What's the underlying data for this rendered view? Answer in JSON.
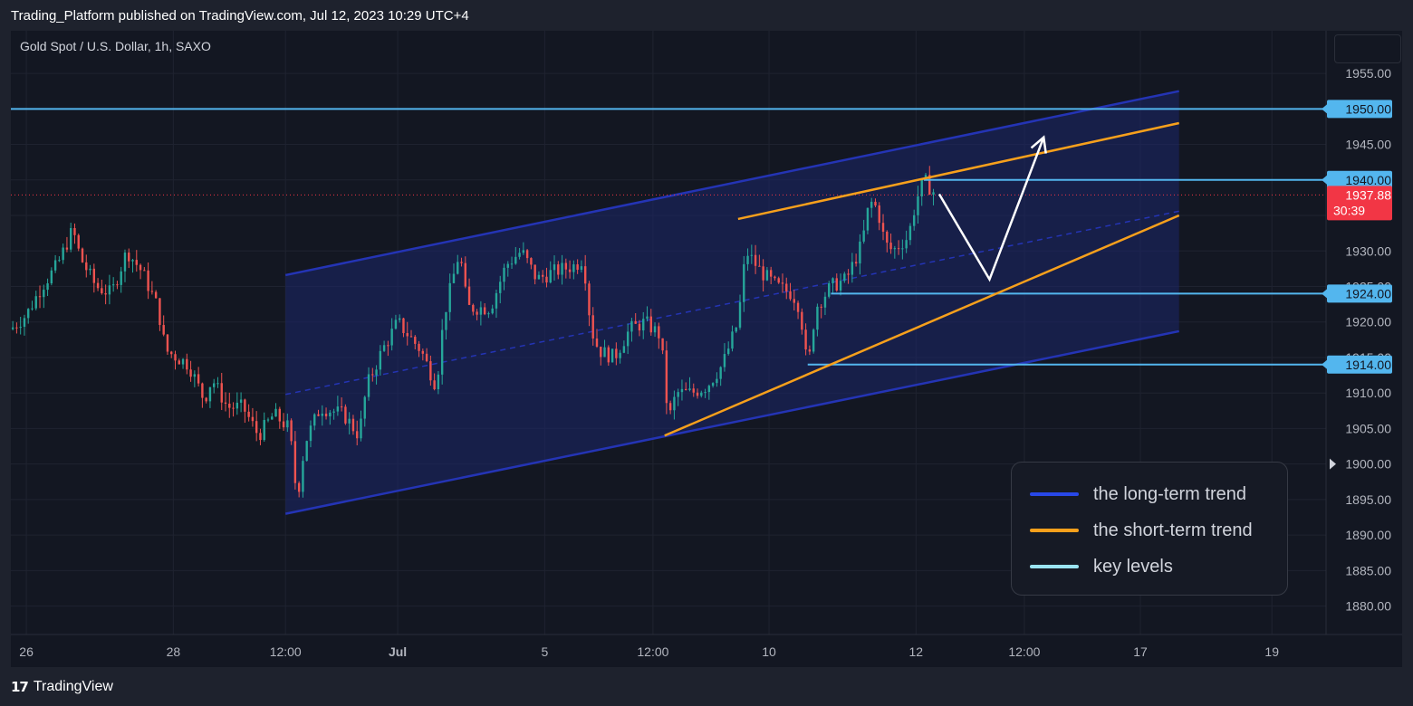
{
  "header": {
    "published": "Trading_Platform published on TradingView.com, Jul 12, 2023 10:29 UTC+4"
  },
  "symbol": {
    "title": "Gold Spot / U.S. Dollar, 1h, SAXO"
  },
  "footer": {
    "brand": "TradingView",
    "logo_glyph": "17"
  },
  "legend": {
    "items": [
      {
        "label": "the long-term trend",
        "color": "#2848e8"
      },
      {
        "label": "the short-term trend",
        "color": "#f7a01c"
      },
      {
        "label": "key levels",
        "color": "#9ae4f2"
      }
    ]
  },
  "colors": {
    "background": "#131722",
    "grid": "#1f2330",
    "up_candle": "#26a69a",
    "down_candle": "#ef5350",
    "key_level": "#53b6ee",
    "channel_fill": "#1c2669",
    "channel_line": "#2434b5",
    "short_trend": "#f7a01c",
    "projection": "#ffffff",
    "price_tag": "#f23645"
  },
  "chart_data": {
    "type": "candlestick",
    "title": "Gold Spot / U.S. Dollar, 1h, SAXO",
    "ylim": [
      1876,
      1961
    ],
    "yticks": [
      1955,
      1950,
      1945,
      1940,
      1935,
      1930,
      1925,
      1920,
      1915,
      1910,
      1905,
      1900,
      1895,
      1890,
      1885,
      1880
    ],
    "ytick_labels": [
      "1955.00",
      "1950.00",
      "1945.00",
      "1940.00",
      "1935.00",
      "1930.00",
      "1925.00",
      "1920.00",
      "1915.00",
      "1910.00",
      "1905.00",
      "1900.00",
      "1895.00",
      "1890.00",
      "1885.00",
      "1880.00"
    ],
    "xlim": [
      0,
      170
    ],
    "xticks": [
      {
        "label": "26",
        "t": 2
      },
      {
        "label": "28",
        "t": 21
      },
      {
        "label": "12:00",
        "t": 35.5
      },
      {
        "label": "Jul",
        "t": 50
      },
      {
        "label": "5",
        "t": 69
      },
      {
        "label": "12:00",
        "t": 83
      },
      {
        "label": "10",
        "t": 98
      },
      {
        "label": "12",
        "t": 117
      },
      {
        "label": "12:00",
        "t": 131
      },
      {
        "label": "17",
        "t": 146
      },
      {
        "label": "19",
        "t": 163
      }
    ],
    "price_anchors": [
      [
        0,
        1919
      ],
      [
        2,
        1921
      ],
      [
        4,
        1925
      ],
      [
        6,
        1928
      ],
      [
        8,
        1933
      ],
      [
        9,
        1929
      ],
      [
        11,
        1925
      ],
      [
        13,
        1924
      ],
      [
        15,
        1930
      ],
      [
        17,
        1927
      ],
      [
        19,
        1922
      ],
      [
        20,
        1916
      ],
      [
        23,
        1914
      ],
      [
        25,
        1909
      ],
      [
        26,
        1912
      ],
      [
        28,
        1908
      ],
      [
        30,
        1908
      ],
      [
        32,
        1904
      ],
      [
        34,
        1907
      ],
      [
        36,
        1905
      ],
      [
        37,
        1895
      ],
      [
        38,
        1903
      ],
      [
        40,
        1908
      ],
      [
        43,
        1907
      ],
      [
        45,
        1904
      ],
      [
        46,
        1911
      ],
      [
        48,
        1916
      ],
      [
        50,
        1920
      ],
      [
        53,
        1916
      ],
      [
        55,
        1911
      ],
      [
        56,
        1921
      ],
      [
        58,
        1930
      ],
      [
        59,
        1922
      ],
      [
        62,
        1922
      ],
      [
        64,
        1928
      ],
      [
        66,
        1930
      ],
      [
        68,
        1926
      ],
      [
        70,
        1927
      ],
      [
        73,
        1928
      ],
      [
        74,
        1929
      ],
      [
        75,
        1919
      ],
      [
        76,
        1916
      ],
      [
        78,
        1915
      ],
      [
        80,
        1919
      ],
      [
        82,
        1920
      ],
      [
        84,
        1918
      ],
      [
        85,
        1906
      ],
      [
        86,
        1910
      ],
      [
        88,
        1910
      ],
      [
        90,
        1911
      ],
      [
        92,
        1914
      ],
      [
        94,
        1920
      ],
      [
        95,
        1930
      ],
      [
        97,
        1927
      ],
      [
        99,
        1925
      ],
      [
        101,
        1924
      ],
      [
        102,
        1922
      ],
      [
        103,
        1913
      ],
      [
        104,
        1922
      ],
      [
        106,
        1925
      ],
      [
        108,
        1926
      ],
      [
        110,
        1931
      ],
      [
        111,
        1937
      ],
      [
        112,
        1936
      ],
      [
        113,
        1931
      ],
      [
        114,
        1930
      ],
      [
        116,
        1932
      ],
      [
        117,
        1937
      ],
      [
        118,
        1940
      ],
      [
        119.5,
        1938
      ]
    ],
    "key_levels": [
      {
        "label": "1950.00",
        "price": 1950,
        "from_t": 0
      },
      {
        "label": "1940.00",
        "price": 1940,
        "from_t": 118
      },
      {
        "label": "1924.00",
        "price": 1924,
        "from_t": 106
      },
      {
        "label": "1914.00",
        "price": 1914,
        "from_t": 103
      }
    ],
    "current_price": {
      "label": "1937.88",
      "price": 1937.88,
      "countdown": "30:39"
    },
    "axis_marker": {
      "label": "1900.00",
      "price": 1900
    },
    "long_term_channel": {
      "upper": [
        [
          35.5,
          1926.6
        ],
        [
          151,
          1952.5
        ]
      ],
      "lower": [
        [
          35.5,
          1893
        ],
        [
          151,
          1918.7
        ]
      ],
      "mid": [
        [
          35.5,
          1909.8
        ],
        [
          151,
          1935.6
        ]
      ]
    },
    "short_term_trend": {
      "upper": [
        [
          94,
          1934.5
        ],
        [
          151,
          1948
        ]
      ],
      "lower": [
        [
          84.5,
          1904
        ],
        [
          151,
          1935
        ]
      ]
    },
    "projection_path": [
      [
        120,
        1938
      ],
      [
        126.5,
        1926
      ],
      [
        133.5,
        1946
      ]
    ]
  }
}
